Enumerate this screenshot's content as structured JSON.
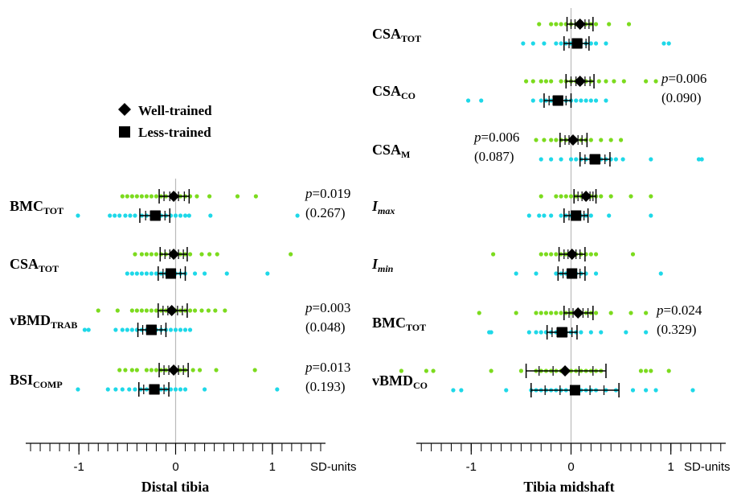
{
  "legend": {
    "well": "Well-trained",
    "less": "Less-trained"
  },
  "colors": {
    "well_dots": "#7cdb1e",
    "less_dots": "#1ed8e8",
    "marker": "#000000",
    "zero_line": "#bbbbbb"
  },
  "chart_data": [
    {
      "type": "scatter",
      "title": "Distal tibia",
      "unit_label": "SD-units",
      "xlim": [
        -1.55,
        1.55
      ],
      "xticks": [
        -1,
        0,
        1
      ],
      "tick_labels": [
        "-1",
        "0",
        "1"
      ],
      "minor_tick_step": 0.1,
      "grid": false,
      "legend_placement": "top-left",
      "series_names": [
        "Well-trained",
        "Less-trained"
      ],
      "variables": [
        {
          "label_main": "BMC",
          "label_sub": "TOT",
          "italic": false,
          "well": {
            "mean": -0.02,
            "ci": [
              -0.17,
              0.14
            ],
            "ticks": [
              -0.12,
              -0.06,
              0.03,
              0.09
            ],
            "dots": [
              -0.55,
              -0.5,
              -0.45,
              -0.4,
              -0.35,
              -0.3,
              -0.25,
              -0.2,
              -0.15,
              -0.1,
              -0.05,
              0.0,
              0.05,
              0.1,
              0.15,
              0.22,
              0.35,
              0.64,
              0.83
            ]
          },
          "less": {
            "mean": -0.21,
            "ci": [
              -0.37,
              -0.06
            ],
            "ticks": [
              -0.31,
              -0.26,
              -0.16,
              -0.11
            ],
            "dots": [
              -1.01,
              -0.68,
              -0.63,
              -0.58,
              -0.52,
              -0.47,
              -0.42,
              -0.35,
              -0.3,
              -0.25,
              -0.2,
              -0.15,
              -0.1,
              -0.05,
              0.0,
              0.05,
              0.1,
              0.14,
              0.36,
              1.26
            ]
          },
          "p": "p",
          "p_value": "=0.019",
          "p_paren": "(0.267)"
        },
        {
          "label_main": "CSA",
          "label_sub": "TOT",
          "italic": false,
          "well": {
            "mean": -0.02,
            "ci": [
              -0.16,
              0.12
            ],
            "ticks": [
              -0.11,
              -0.06,
              0.03,
              0.08
            ],
            "dots": [
              -0.42,
              -0.35,
              -0.3,
              -0.25,
              -0.2,
              -0.15,
              -0.1,
              -0.05,
              0.0,
              0.05,
              0.1,
              0.15,
              0.27,
              0.35,
              0.43,
              1.19
            ]
          },
          "less": {
            "mean": -0.05,
            "ci": [
              -0.18,
              0.1
            ],
            "ticks": [
              -0.13,
              -0.09,
              0.0,
              0.05
            ],
            "dots": [
              -0.5,
              -0.45,
              -0.4,
              -0.35,
              -0.3,
              -0.25,
              -0.2,
              -0.15,
              -0.1,
              -0.05,
              0.0,
              0.05,
              0.1,
              0.2,
              0.3,
              0.53,
              0.95
            ]
          },
          "p": "",
          "p_value": "",
          "p_paren": ""
        },
        {
          "label_main": "vBMD",
          "label_sub": "TRAB",
          "italic": false,
          "well": {
            "mean": -0.04,
            "ci": [
              -0.18,
              0.12
            ],
            "ticks": [
              -0.13,
              -0.08,
              0.02,
              0.07
            ],
            "dots": [
              -0.8,
              -0.6,
              -0.45,
              -0.4,
              -0.35,
              -0.3,
              -0.25,
              -0.2,
              -0.15,
              -0.1,
              -0.05,
              0.0,
              0.05,
              0.1,
              0.15,
              0.2,
              0.27,
              0.34,
              0.41,
              0.51
            ]
          },
          "less": {
            "mean": -0.25,
            "ci": [
              -0.39,
              -0.1
            ],
            "ticks": [
              -0.34,
              -0.3,
              -0.2,
              -0.15
            ],
            "dots": [
              -0.94,
              -0.9,
              -0.62,
              -0.55,
              -0.5,
              -0.45,
              -0.4,
              -0.35,
              -0.3,
              -0.25,
              -0.2,
              -0.15,
              -0.1,
              -0.05,
              0.0,
              0.05,
              0.1,
              0.15
            ]
          },
          "p": "p",
          "p_value": "=0.003",
          "p_paren": "(0.048)"
        },
        {
          "label_main": "BSI",
          "label_sub": "COMP",
          "italic": false,
          "well": {
            "mean": -0.02,
            "ci": [
              -0.17,
              0.13
            ],
            "ticks": [
              -0.12,
              -0.07,
              0.03,
              0.08
            ],
            "dots": [
              -0.58,
              -0.52,
              -0.45,
              -0.4,
              -0.3,
              -0.25,
              -0.2,
              -0.15,
              -0.1,
              -0.05,
              0.0,
              0.05,
              0.1,
              0.18,
              0.25,
              0.42,
              0.82
            ]
          },
          "less": {
            "mean": -0.22,
            "ci": [
              -0.38,
              -0.07
            ],
            "ticks": [
              -0.33,
              -0.27,
              -0.17,
              -0.12
            ],
            "dots": [
              -1.01,
              -0.7,
              -0.62,
              -0.55,
              -0.48,
              -0.42,
              -0.36,
              -0.3,
              -0.25,
              -0.2,
              -0.15,
              -0.1,
              -0.05,
              0.0,
              0.05,
              0.1,
              0.3,
              1.05
            ]
          },
          "p": "p",
          "p_value": "=0.013",
          "p_paren": "(0.193)"
        }
      ]
    },
    {
      "type": "scatter",
      "title": "Tibia midshaft",
      "unit_label": "SD-units",
      "xlim": [
        -1.55,
        1.55
      ],
      "xticks": [
        -1,
        0,
        1
      ],
      "tick_labels": [
        "-1",
        "0",
        "1"
      ],
      "minor_tick_step": 0.1,
      "grid": false,
      "series_names": [
        "Well-trained",
        "Less-trained"
      ],
      "variables": [
        {
          "label_main": "CSA",
          "label_sub": "TOT",
          "italic": false,
          "well": {
            "mean": 0.09,
            "ci": [
              -0.04,
              0.22
            ],
            "ticks": [
              0.0,
              0.04,
              0.14,
              0.18
            ],
            "dots": [
              -0.32,
              -0.2,
              -0.15,
              -0.1,
              -0.05,
              0.0,
              0.05,
              0.1,
              0.15,
              0.2,
              0.25,
              0.38,
              0.58
            ]
          },
          "less": {
            "mean": 0.06,
            "ci": [
              -0.07,
              0.18
            ],
            "ticks": [
              -0.02,
              0.02,
              0.11,
              0.15
            ],
            "dots": [
              -0.48,
              -0.38,
              -0.27,
              -0.15,
              -0.1,
              -0.05,
              0.0,
              0.05,
              0.1,
              0.15,
              0.2,
              0.25,
              0.35,
              0.93,
              0.98
            ]
          },
          "p": "",
          "p_value": "",
          "p_paren": ""
        },
        {
          "label_main": "CSA",
          "label_sub": "CO",
          "italic": false,
          "well": {
            "mean": 0.09,
            "ci": [
              -0.05,
              0.23
            ],
            "ticks": [
              0.0,
              0.05,
              0.14,
              0.19
            ],
            "dots": [
              -0.45,
              -0.38,
              -0.3,
              -0.25,
              -0.2,
              -0.1,
              -0.05,
              0.0,
              0.05,
              0.1,
              0.15,
              0.2,
              0.28,
              0.35,
              0.43,
              0.53,
              0.75,
              0.85
            ]
          },
          "less": {
            "mean": -0.13,
            "ci": [
              -0.27,
              0.0
            ],
            "ticks": [
              -0.22,
              -0.18,
              -0.09,
              -0.05
            ],
            "dots": [
              -1.03,
              -0.9,
              -0.38,
              -0.3,
              -0.25,
              -0.2,
              -0.15,
              -0.1,
              -0.05,
              0.0,
              0.05,
              0.1,
              0.15,
              0.2,
              0.25,
              0.35
            ]
          },
          "p": "p",
          "p_value": "=0.006",
          "p_paren": "(0.090)"
        },
        {
          "label_main": "CSA",
          "label_sub": "M",
          "italic": false,
          "well": {
            "mean": 0.02,
            "ci": [
              -0.11,
              0.16
            ],
            "ticks": [
              -0.06,
              -0.02,
              0.07,
              0.11
            ],
            "dots": [
              -0.35,
              -0.27,
              -0.2,
              -0.15,
              -0.1,
              -0.05,
              0.0,
              0.05,
              0.1,
              0.15,
              0.2,
              0.3,
              0.4,
              0.5
            ]
          },
          "less": {
            "mean": 0.24,
            "ci": [
              0.09,
              0.39
            ],
            "ticks": [
              0.14,
              0.19,
              0.29,
              0.34
            ],
            "dots": [
              -0.3,
              -0.2,
              -0.1,
              0.0,
              0.05,
              0.1,
              0.15,
              0.2,
              0.25,
              0.3,
              0.35,
              0.4,
              0.45,
              0.52,
              0.8,
              1.28,
              1.31
            ]
          },
          "p": "p",
          "p_value": "=0.006",
          "p_paren": "(0.087)"
        },
        {
          "label_main": "I",
          "label_sub": "max",
          "italic": true,
          "well": {
            "mean": 0.15,
            "ci": [
              0.03,
              0.25
            ],
            "ticks": [
              0.07,
              0.11,
              0.19,
              0.22
            ],
            "dots": [
              -0.3,
              -0.15,
              -0.1,
              -0.05,
              0.0,
              0.05,
              0.1,
              0.15,
              0.2,
              0.25,
              0.3,
              0.4,
              0.6,
              0.8
            ]
          },
          "less": {
            "mean": 0.05,
            "ci": [
              -0.07,
              0.17
            ],
            "ticks": [
              -0.02,
              0.01,
              0.09,
              0.13
            ],
            "dots": [
              -0.42,
              -0.32,
              -0.27,
              -0.2,
              -0.1,
              -0.05,
              0.0,
              0.05,
              0.1,
              0.15,
              0.2,
              0.38,
              0.8
            ]
          },
          "p": "",
          "p_value": "",
          "p_paren": ""
        },
        {
          "label_main": "I",
          "label_sub": "min",
          "italic": true,
          "well": {
            "mean": 0.01,
            "ci": [
              -0.12,
              0.14
            ],
            "ticks": [
              -0.07,
              -0.03,
              0.05,
              0.09
            ],
            "dots": [
              -0.78,
              -0.3,
              -0.25,
              -0.2,
              -0.15,
              -0.1,
              -0.05,
              0.0,
              0.05,
              0.1,
              0.15,
              0.2,
              0.25,
              0.62
            ]
          },
          "less": {
            "mean": 0.01,
            "ci": [
              -0.13,
              0.14
            ],
            "ticks": [
              -0.08,
              -0.04,
              0.05,
              0.09
            ],
            "dots": [
              -0.55,
              -0.35,
              -0.15,
              -0.1,
              -0.05,
              0.0,
              0.05,
              0.1,
              0.15,
              0.25,
              0.9
            ]
          },
          "p": "",
          "p_value": "",
          "p_paren": ""
        },
        {
          "label_main": "BMC",
          "label_sub": "TOT",
          "italic": false,
          "well": {
            "mean": 0.07,
            "ci": [
              -0.07,
              0.22
            ],
            "ticks": [
              -0.02,
              0.02,
              0.12,
              0.17
            ],
            "dots": [
              -0.92,
              -0.55,
              -0.35,
              -0.3,
              -0.25,
              -0.2,
              -0.15,
              -0.1,
              -0.05,
              0.0,
              0.05,
              0.1,
              0.15,
              0.2,
              0.25,
              0.4,
              0.6,
              0.75
            ]
          },
          "less": {
            "mean": -0.09,
            "ci": [
              -0.24,
              0.06
            ],
            "ticks": [
              -0.19,
              -0.14,
              -0.04,
              0.01
            ],
            "dots": [
              -0.82,
              -0.8,
              -0.42,
              -0.35,
              -0.3,
              -0.25,
              -0.2,
              -0.15,
              -0.1,
              -0.05,
              0.0,
              0.05,
              0.1,
              0.2,
              0.3,
              0.55,
              0.75
            ]
          },
          "p": "p",
          "p_value": "=0.024",
          "p_paren": "(0.329)"
        },
        {
          "label_main": "vBMD",
          "label_sub": "CO",
          "italic": false,
          "well": {
            "mean": -0.06,
            "ci": [
              -0.45,
              0.35
            ],
            "ticks": [
              -0.32,
              -0.18,
              0.08,
              0.22
            ],
            "dots": [
              -1.7,
              -1.45,
              -1.38,
              -0.8,
              -0.5,
              -0.35,
              -0.3,
              -0.25,
              -0.2,
              -0.15,
              -0.1,
              -0.05,
              0.0,
              0.05,
              0.1,
              0.15,
              0.2,
              0.25,
              0.3,
              0.7,
              0.75,
              0.8,
              0.98
            ]
          },
          "less": {
            "mean": 0.04,
            "ci": [
              -0.4,
              0.48
            ],
            "ticks": [
              -0.26,
              -0.11,
              0.19,
              0.33
            ],
            "dots": [
              -1.18,
              -1.1,
              -0.65,
              -0.4,
              -0.35,
              -0.3,
              -0.25,
              -0.2,
              -0.15,
              -0.1,
              -0.05,
              0.0,
              0.05,
              0.1,
              0.15,
              0.2,
              0.25,
              0.35,
              0.45,
              0.62,
              0.75,
              0.85,
              1.22
            ]
          },
          "p": "",
          "p_value": "",
          "p_paren": ""
        }
      ]
    }
  ]
}
